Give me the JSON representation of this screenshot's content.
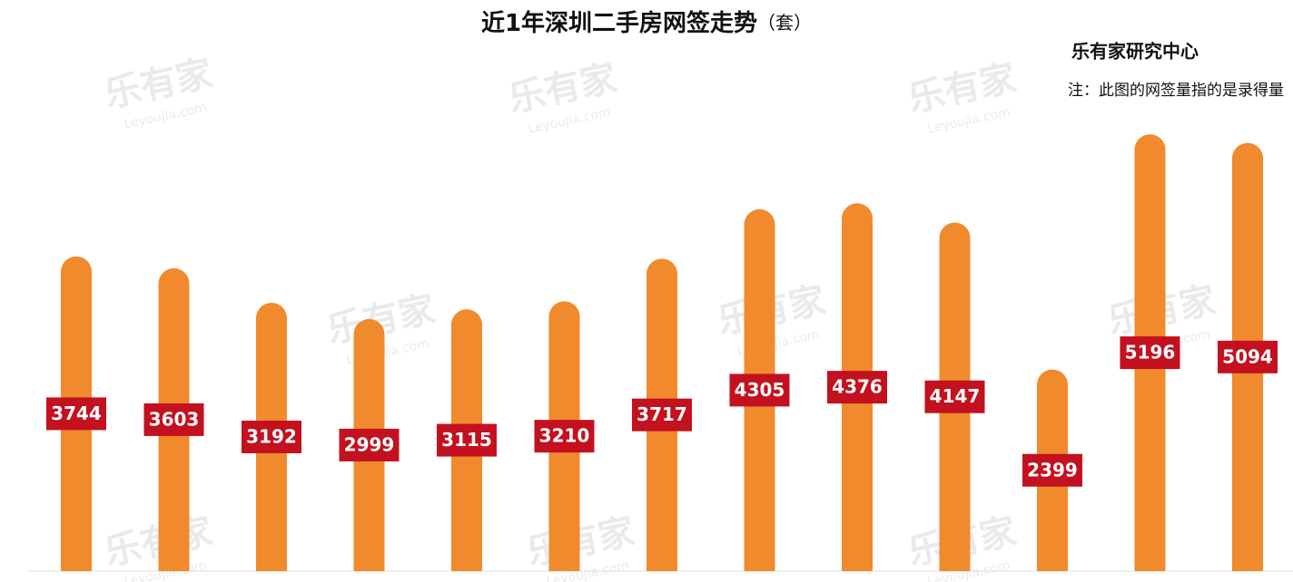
{
  "chart_data": {
    "type": "bar",
    "title": "近1年深圳二手房网签走势",
    "title_unit": "（套）",
    "source": "乐有家研究中心",
    "note": "注：此图的网签量指的是录得量",
    "watermark": [
      "乐有家",
      "Leyoujia.com"
    ],
    "categories": [
      null,
      null,
      null,
      null,
      null,
      null,
      null,
      null,
      null,
      null,
      null,
      null,
      null
    ],
    "values": [
      3744,
      3603,
      3192,
      2999,
      3115,
      3210,
      3717,
      4305,
      4376,
      4147,
      2399,
      5196,
      5094
    ],
    "color": "#f08a2c",
    "label_color": "#c3111f",
    "ylim": [
      0,
      5500
    ]
  }
}
